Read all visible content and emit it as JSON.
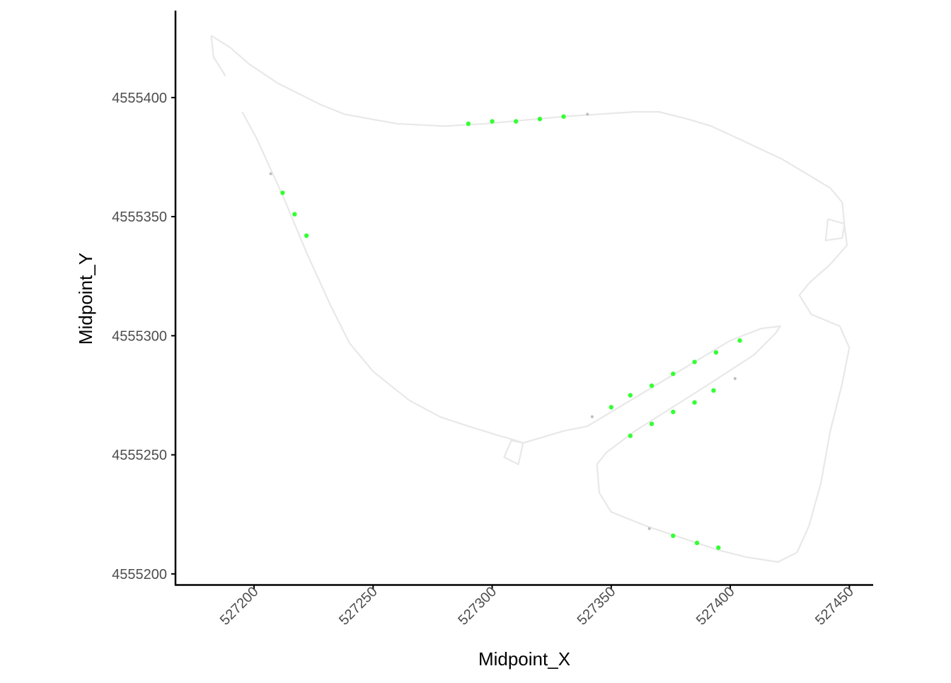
{
  "chart_data": {
    "type": "scatter",
    "xlabel": "Midpoint_X",
    "ylabel": "Midpoint_Y",
    "xlim": [
      527167,
      527460
    ],
    "ylim": [
      4555195.5,
      4555436.5
    ],
    "x_ticks": [
      527200,
      527250,
      527300,
      527350,
      527400,
      527450
    ],
    "x_tick_labels": [
      "527200",
      "527250",
      "527300",
      "527350",
      "527400",
      "527450"
    ],
    "y_ticks": [
      4555200,
      4555250,
      4555300,
      4555350,
      4555400
    ],
    "y_tick_labels": [
      "4555200",
      "4555250",
      "4555300",
      "4555350",
      "4555400"
    ],
    "grid": false,
    "legend": "none",
    "colors": {
      "outline": "#e8e8e8",
      "highlighted_point": "#33ff33",
      "other_point": "#bdbdbd",
      "axis": "#000000"
    },
    "outline_paths": [
      [
        [
          527182,
          4555426
        ],
        [
          527183,
          4555417
        ],
        [
          527188,
          4555409
        ]
      ],
      [
        [
          527182,
          4555426
        ],
        [
          527190,
          4555421
        ],
        [
          527198,
          4555414
        ],
        [
          527210,
          4555406
        ],
        [
          527228,
          4555397
        ],
        [
          527238,
          4555393
        ],
        [
          527260,
          4555389
        ],
        [
          527280,
          4555388
        ],
        [
          527297,
          4555389
        ],
        [
          527330,
          4555392
        ],
        [
          527360,
          4555394
        ],
        [
          527370,
          4555394
        ],
        [
          527382,
          4555391
        ],
        [
          527392,
          4555388
        ],
        [
          527405,
          4555382
        ],
        [
          527422,
          4555374
        ],
        [
          527442,
          4555362
        ],
        [
          527447,
          4555356
        ],
        [
          527448,
          4555346
        ],
        [
          527449,
          4555338
        ],
        [
          527442,
          4555330
        ],
        [
          527433,
          4555322
        ],
        [
          527429,
          4555317
        ],
        [
          527434,
          4555309
        ],
        [
          527446,
          4555304
        ],
        [
          527450,
          4555295
        ],
        [
          527447,
          4555280
        ],
        [
          527442,
          4555260
        ],
        [
          527438,
          4555238
        ],
        [
          527433,
          4555220
        ],
        [
          527428,
          4555209
        ],
        [
          527420,
          4555205
        ],
        [
          527407,
          4555207
        ],
        [
          527395,
          4555210
        ],
        [
          527365,
          4555220
        ],
        [
          527350,
          4555226
        ],
        [
          527345,
          4555234
        ],
        [
          527344,
          4555246
        ],
        [
          527348,
          4555251
        ],
        [
          527360,
          4555260
        ],
        [
          527390,
          4555279
        ],
        [
          527410,
          4555292
        ],
        [
          527419,
          4555301
        ],
        [
          527421,
          4555304
        ],
        [
          527413,
          4555303
        ],
        [
          527400,
          4555298
        ],
        [
          527380,
          4555286
        ],
        [
          527360,
          4555274
        ],
        [
          527340,
          4555262
        ],
        [
          527330,
          4555260
        ],
        [
          527313,
          4555255
        ],
        [
          527310,
          4555256
        ],
        [
          527303,
          4555258
        ],
        [
          527290,
          4555262
        ],
        [
          527278,
          4555266
        ],
        [
          527265,
          4555273
        ],
        [
          527250,
          4555285
        ],
        [
          527240,
          4555297
        ],
        [
          527232,
          4555313
        ],
        [
          527222,
          4555335
        ],
        [
          527212,
          4555359
        ],
        [
          527201,
          4555383
        ],
        [
          527195,
          4555394
        ]
      ],
      [
        [
          527313,
          4555255
        ],
        [
          527311,
          4555246
        ],
        [
          527305,
          4555249
        ],
        [
          527308,
          4555256
        ],
        [
          527313,
          4555255
        ]
      ],
      [
        [
          527441,
          4555349
        ],
        [
          527448,
          4555347
        ],
        [
          527447,
          4555341
        ],
        [
          527440,
          4555340
        ],
        [
          527441,
          4555349
        ]
      ]
    ],
    "series": [
      {
        "role": "highlighted",
        "x": [
          527290,
          527300,
          527310,
          527320,
          527330,
          527212,
          527217,
          527222,
          527350,
          527358,
          527367,
          527376,
          527385,
          527394,
          527404,
          527358,
          527367,
          527376,
          527385,
          527393,
          527376,
          527386,
          527395
        ],
        "y": [
          4555389,
          4555390,
          4555390,
          4555391,
          4555392,
          4555360,
          4555351,
          4555342,
          4555270,
          4555275,
          4555279,
          4555284,
          4555289,
          4555293,
          4555298,
          4555258,
          4555263,
          4555268,
          4555272,
          4555277,
          4555216,
          4555213,
          4555211
        ]
      },
      {
        "role": "other",
        "x": [
          527340,
          527207,
          527342,
          527402,
          527366
        ],
        "y": [
          4555393,
          4555368,
          4555266,
          4555282,
          4555219
        ]
      }
    ]
  }
}
